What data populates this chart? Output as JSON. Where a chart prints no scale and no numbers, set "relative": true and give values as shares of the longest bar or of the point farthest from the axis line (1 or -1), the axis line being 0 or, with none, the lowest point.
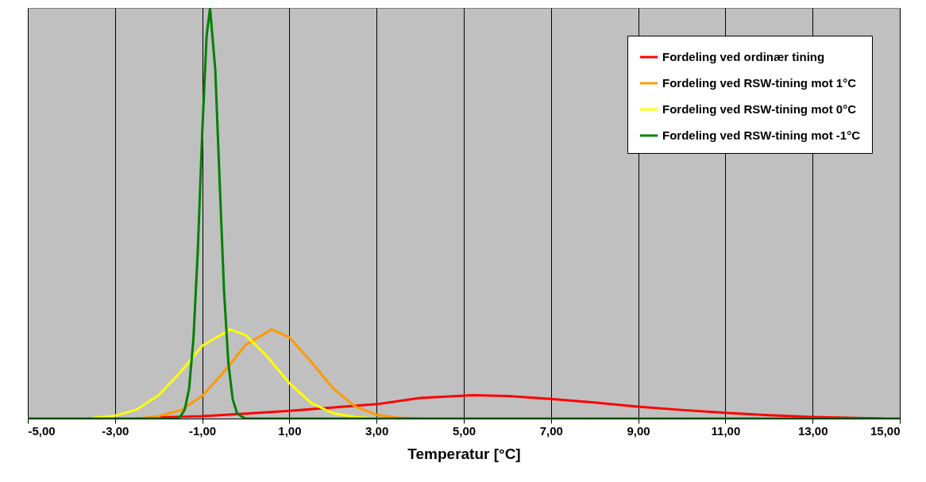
{
  "chart_data": {
    "type": "line",
    "relative": true,
    "xlabel": "Temperatur [°C]",
    "xlim": [
      -5,
      15
    ],
    "xticks": [
      {
        "value": -5,
        "label": "-5,00"
      },
      {
        "value": -3,
        "label": "-3,00"
      },
      {
        "value": -1,
        "label": "-1,00"
      },
      {
        "value": 1,
        "label": "1,00"
      },
      {
        "value": 3,
        "label": "3,00"
      },
      {
        "value": 5,
        "label": "5,00"
      },
      {
        "value": 7,
        "label": "7,00"
      },
      {
        "value": 9,
        "label": "9,00"
      },
      {
        "value": 11,
        "label": "11,00"
      },
      {
        "value": 13,
        "label": "13,00"
      },
      {
        "value": 15,
        "label": "15,00"
      }
    ],
    "grid": "x",
    "legend": "top right",
    "tick_labels": "x",
    "series": [
      {
        "name": "Fordeling ved ordinær tining",
        "color": "#ff0000",
        "x": [
          -2,
          -1,
          0,
          1,
          2,
          3,
          4,
          5.2,
          6,
          7,
          8,
          9,
          10,
          11,
          12,
          13,
          14.6
        ],
        "values": [
          0.003,
          0.006,
          0.012,
          0.019,
          0.027,
          0.035,
          0.05,
          0.057,
          0.055,
          0.048,
          0.039,
          0.029,
          0.021,
          0.014,
          0.008,
          0.004,
          0
        ]
      },
      {
        "name": "Fordeling ved RSW-tining mot 1°C",
        "color": "#ff9900",
        "x": [
          -2.5,
          -2,
          -1.5,
          -1,
          -0.5,
          0,
          0.59,
          1,
          1.5,
          2,
          2.5,
          3,
          3.5,
          4
        ],
        "values": [
          0,
          0.006,
          0.02,
          0.055,
          0.114,
          0.18,
          0.217,
          0.198,
          0.138,
          0.074,
          0.03,
          0.009,
          0.002,
          0
        ]
      },
      {
        "name": "Fordeling ved RSW-tining mot 0°C",
        "color": "#ffff00",
        "x": [
          -3.5,
          -3,
          -2.5,
          -2,
          -1.5,
          -1,
          -0.36,
          0,
          0.5,
          1,
          1.5,
          2,
          2.5,
          3
        ],
        "values": [
          0.002,
          0.007,
          0.022,
          0.057,
          0.113,
          0.177,
          0.217,
          0.203,
          0.15,
          0.086,
          0.038,
          0.013,
          0.004,
          0
        ]
      },
      {
        "name": "Fordeling ved RSW-tining mot -1°C",
        "color": "#008000",
        "x": [
          -5,
          -1.6,
          -1.5,
          -1.4,
          -1.3,
          -1.2,
          -1.1,
          -1,
          -0.9,
          -0.82,
          -0.7,
          -0.6,
          -0.5,
          -0.4,
          -0.3,
          -0.2,
          -0.1,
          0,
          15
        ],
        "values": [
          0,
          0,
          0.005,
          0.022,
          0.073,
          0.195,
          0.411,
          0.693,
          0.93,
          1,
          0.849,
          0.578,
          0.313,
          0.135,
          0.047,
          0.013,
          0.005,
          0,
          0
        ]
      }
    ]
  }
}
